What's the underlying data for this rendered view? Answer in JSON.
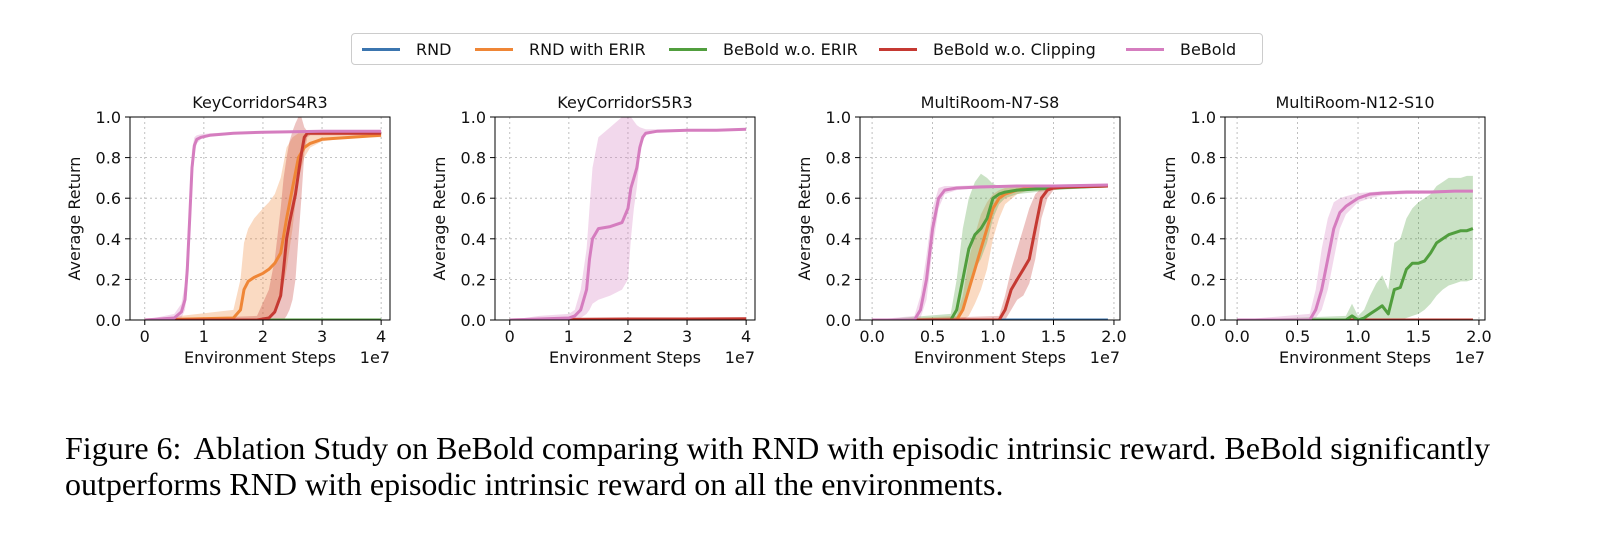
{
  "legend": {
    "items": [
      {
        "label": "RND",
        "color": "#3b75af"
      },
      {
        "label": "RND with ERIR",
        "color": "#ef8636"
      },
      {
        "label": "BeBold w.o. ERIR",
        "color": "#519e3e"
      },
      {
        "label": "BeBold w.o. Clipping",
        "color": "#c53932"
      },
      {
        "label": "BeBold",
        "color": "#d57dbf"
      }
    ]
  },
  "chart_data": [
    {
      "type": "line",
      "title": "KeyCorridorS4R3",
      "xlabel": "Environment Steps",
      "ylabel": "Average Return",
      "x_multiplier_label": "1e7",
      "xlim": [
        -0.25,
        4.15
      ],
      "ylim": [
        0,
        1.0
      ],
      "xticks": [
        0,
        1,
        2,
        3,
        4
      ],
      "xtick_labels": [
        "0",
        "1",
        "2",
        "3",
        "4"
      ],
      "yticks": [
        0,
        0.2,
        0.4,
        0.6,
        0.8,
        1.0
      ],
      "ytick_labels": [
        "0.0",
        "0.2",
        "0.4",
        "0.6",
        "0.8",
        "1.0"
      ],
      "grid": true,
      "series": [
        {
          "color": "#3b75af",
          "x": [
            0,
            4
          ],
          "y": [
            0,
            0
          ]
        },
        {
          "color": "#519e3e",
          "x": [
            0,
            4
          ],
          "y": [
            0,
            0
          ]
        },
        {
          "color": "#ef8636",
          "x": [
            0,
            1.5,
            1.62,
            1.68,
            1.75,
            1.85,
            2.0,
            2.1,
            2.2,
            2.3,
            2.4,
            2.5,
            2.6,
            2.7,
            2.8,
            3.0,
            3.5,
            4.0
          ],
          "y": [
            0,
            0.01,
            0.05,
            0.15,
            0.19,
            0.21,
            0.23,
            0.25,
            0.28,
            0.33,
            0.5,
            0.65,
            0.8,
            0.85,
            0.87,
            0.89,
            0.9,
            0.91
          ],
          "lower": [
            0,
            0,
            0,
            0,
            0,
            0,
            0,
            0,
            0.05,
            0.1,
            0.25,
            0.45,
            0.7,
            0.8,
            0.85,
            0.88,
            0.9,
            0.9
          ],
          "upper": [
            0,
            0.05,
            0.2,
            0.38,
            0.45,
            0.5,
            0.55,
            0.58,
            0.62,
            0.7,
            0.85,
            0.9,
            0.92,
            0.92,
            0.92,
            0.92,
            0.92,
            0.92
          ]
        },
        {
          "color": "#c53932",
          "x": [
            0,
            1.9,
            2.1,
            2.2,
            2.3,
            2.35,
            2.4,
            2.45,
            2.5,
            2.55,
            2.6,
            2.65,
            2.7,
            2.75,
            2.8,
            3.0,
            3.5,
            4.0
          ],
          "y": [
            0,
            0,
            0.01,
            0.04,
            0.12,
            0.25,
            0.4,
            0.48,
            0.55,
            0.62,
            0.72,
            0.82,
            0.9,
            0.92,
            0.92,
            0.92,
            0.92,
            0.92
          ],
          "lower": [
            0,
            0,
            0,
            0,
            0,
            0,
            0.02,
            0.05,
            0.1,
            0.2,
            0.4,
            0.6,
            0.82,
            0.9,
            0.91,
            0.91,
            0.91,
            0.91
          ],
          "upper": [
            0,
            0.02,
            0.15,
            0.3,
            0.55,
            0.7,
            0.8,
            0.88,
            0.93,
            0.97,
            1.0,
            1.0,
            0.95,
            0.93,
            0.93,
            0.93,
            0.93,
            0.93
          ]
        },
        {
          "color": "#d57dbf",
          "x": [
            0,
            0.5,
            0.62,
            0.68,
            0.72,
            0.76,
            0.8,
            0.84,
            0.88,
            0.95,
            1.1,
            1.5,
            2.0,
            3.0,
            4.0
          ],
          "y": [
            0,
            0.01,
            0.04,
            0.1,
            0.25,
            0.5,
            0.75,
            0.86,
            0.89,
            0.9,
            0.91,
            0.92,
            0.925,
            0.93,
            0.93
          ],
          "lower": [
            0,
            0,
            0.01,
            0.05,
            0.15,
            0.38,
            0.65,
            0.82,
            0.87,
            0.89,
            0.905,
            0.915,
            0.92,
            0.925,
            0.925
          ],
          "upper": [
            0,
            0.03,
            0.08,
            0.18,
            0.38,
            0.62,
            0.84,
            0.9,
            0.91,
            0.915,
            0.92,
            0.925,
            0.93,
            0.935,
            0.935
          ]
        }
      ]
    },
    {
      "type": "line",
      "title": "KeyCorridorS5R3",
      "xlabel": "Environment Steps",
      "ylabel": "Average Return",
      "x_multiplier_label": "1e7",
      "xlim": [
        -0.25,
        4.15
      ],
      "ylim": [
        0,
        1.0
      ],
      "xticks": [
        0,
        1,
        2,
        3,
        4
      ],
      "xtick_labels": [
        "0",
        "1",
        "2",
        "3",
        "4"
      ],
      "yticks": [
        0,
        0.2,
        0.4,
        0.6,
        0.8,
        1.0
      ],
      "ytick_labels": [
        "0.0",
        "0.2",
        "0.4",
        "0.6",
        "0.8",
        "1.0"
      ],
      "grid": true,
      "series": [
        {
          "color": "#3b75af",
          "x": [
            0,
            4
          ],
          "y": [
            0,
            0
          ]
        },
        {
          "color": "#ef8636",
          "x": [
            0,
            4
          ],
          "y": [
            0,
            0
          ]
        },
        {
          "color": "#519e3e",
          "x": [
            0,
            4
          ],
          "y": [
            0,
            0
          ]
        },
        {
          "color": "#c53932",
          "x": [
            0,
            1,
            2,
            3,
            4
          ],
          "y": [
            0,
            0.003,
            0.005,
            0.005,
            0.006
          ]
        },
        {
          "color": "#d57dbf",
          "x": [
            0,
            0.5,
            1.0,
            1.1,
            1.2,
            1.3,
            1.35,
            1.4,
            1.5,
            1.7,
            1.9,
            2.0,
            2.05,
            2.1,
            2.15,
            2.2,
            2.25,
            2.3,
            2.5,
            3.0,
            3.5,
            4.0
          ],
          "y": [
            0,
            0.005,
            0.01,
            0.02,
            0.05,
            0.15,
            0.3,
            0.4,
            0.45,
            0.46,
            0.48,
            0.55,
            0.65,
            0.7,
            0.75,
            0.85,
            0.9,
            0.92,
            0.93,
            0.935,
            0.935,
            0.94
          ],
          "lower": [
            0,
            0,
            0,
            0,
            0.01,
            0.03,
            0.05,
            0.08,
            0.1,
            0.12,
            0.15,
            0.2,
            0.4,
            0.55,
            0.65,
            0.8,
            0.88,
            0.91,
            0.925,
            0.93,
            0.93,
            0.935
          ],
          "upper": [
            0,
            0.02,
            0.03,
            0.05,
            0.15,
            0.35,
            0.55,
            0.75,
            0.9,
            0.95,
            1.0,
            1.0,
            1.0,
            0.98,
            0.96,
            0.95,
            0.945,
            0.94,
            0.94,
            0.94,
            0.94,
            0.945
          ]
        }
      ]
    },
    {
      "type": "line",
      "title": "MultiRoom-N7-S8",
      "xlabel": "Environment Steps",
      "ylabel": "Average Return",
      "x_multiplier_label": "1e7",
      "xlim": [
        -0.1,
        2.05
      ],
      "ylim": [
        0,
        1.0
      ],
      "xticks": [
        0,
        0.5,
        1.0,
        1.5,
        2.0
      ],
      "xtick_labels": [
        "0.0",
        "0.5",
        "1.0",
        "1.5",
        "2.0"
      ],
      "yticks": [
        0,
        0.2,
        0.4,
        0.6,
        0.8,
        1.0
      ],
      "ytick_labels": [
        "0.0",
        "0.2",
        "0.4",
        "0.6",
        "0.8",
        "1.0"
      ],
      "grid": true,
      "series": [
        {
          "color": "#3b75af",
          "x": [
            0,
            1.95
          ],
          "y": [
            0,
            0
          ]
        },
        {
          "color": "#ef8636",
          "x": [
            0,
            0.7,
            0.75,
            0.8,
            0.85,
            0.9,
            0.95,
            1.0,
            1.05,
            1.1,
            1.2,
            1.3,
            1.5,
            1.95
          ],
          "y": [
            0,
            0,
            0.05,
            0.15,
            0.25,
            0.35,
            0.45,
            0.55,
            0.6,
            0.62,
            0.64,
            0.65,
            0.655,
            0.66
          ],
          "lower": [
            0,
            0,
            0,
            0.02,
            0.08,
            0.15,
            0.25,
            0.4,
            0.5,
            0.57,
            0.62,
            0.64,
            0.65,
            0.655
          ],
          "upper": [
            0,
            0.02,
            0.12,
            0.3,
            0.42,
            0.52,
            0.58,
            0.62,
            0.64,
            0.65,
            0.655,
            0.66,
            0.665,
            0.665
          ]
        },
        {
          "color": "#519e3e",
          "x": [
            0,
            0.65,
            0.7,
            0.75,
            0.8,
            0.85,
            0.9,
            0.95,
            1.0,
            1.05,
            1.1,
            1.2,
            1.5,
            1.95
          ],
          "y": [
            0,
            0,
            0.05,
            0.2,
            0.35,
            0.42,
            0.45,
            0.5,
            0.6,
            0.62,
            0.63,
            0.64,
            0.65,
            0.66
          ],
          "lower": [
            0,
            0,
            0,
            0.05,
            0.15,
            0.25,
            0.3,
            0.38,
            0.5,
            0.57,
            0.6,
            0.62,
            0.64,
            0.655
          ],
          "upper": [
            0,
            0.03,
            0.2,
            0.45,
            0.6,
            0.68,
            0.72,
            0.7,
            0.67,
            0.66,
            0.66,
            0.66,
            0.665,
            0.665
          ]
        },
        {
          "color": "#c53932",
          "x": [
            0,
            1.05,
            1.1,
            1.15,
            1.2,
            1.25,
            1.3,
            1.35,
            1.4,
            1.45,
            1.5,
            1.6,
            1.95
          ],
          "y": [
            0,
            0,
            0.05,
            0.15,
            0.2,
            0.25,
            0.3,
            0.45,
            0.6,
            0.64,
            0.65,
            0.655,
            0.66
          ],
          "lower": [
            0,
            0,
            0,
            0.05,
            0.1,
            0.12,
            0.18,
            0.3,
            0.5,
            0.6,
            0.64,
            0.65,
            0.655
          ],
          "upper": [
            0,
            0.02,
            0.12,
            0.25,
            0.35,
            0.45,
            0.55,
            0.62,
            0.65,
            0.66,
            0.66,
            0.66,
            0.665
          ]
        },
        {
          "color": "#d57dbf",
          "x": [
            0,
            0.35,
            0.4,
            0.45,
            0.5,
            0.55,
            0.6,
            0.7,
            0.9,
            1.2,
            1.5,
            1.95
          ],
          "y": [
            0,
            0,
            0.05,
            0.2,
            0.45,
            0.6,
            0.64,
            0.65,
            0.655,
            0.66,
            0.66,
            0.665
          ],
          "lower": [
            0,
            0,
            0.01,
            0.1,
            0.35,
            0.55,
            0.62,
            0.64,
            0.65,
            0.655,
            0.655,
            0.66
          ],
          "upper": [
            0,
            0.02,
            0.12,
            0.32,
            0.55,
            0.65,
            0.66,
            0.66,
            0.665,
            0.665,
            0.665,
            0.67
          ]
        }
      ]
    },
    {
      "type": "line",
      "title": "MultiRoom-N12-S10",
      "xlabel": "Environment Steps",
      "ylabel": "Average Return",
      "x_multiplier_label": "1e7",
      "xlim": [
        -0.1,
        2.05
      ],
      "ylim": [
        0,
        1.0
      ],
      "xticks": [
        0,
        0.5,
        1.0,
        1.5,
        2.0
      ],
      "xtick_labels": [
        "0.0",
        "0.5",
        "1.0",
        "1.5",
        "2.0"
      ],
      "yticks": [
        0,
        0.2,
        0.4,
        0.6,
        0.8,
        1.0
      ],
      "ytick_labels": [
        "0.0",
        "0.2",
        "0.4",
        "0.6",
        "0.8",
        "1.0"
      ],
      "grid": true,
      "series": [
        {
          "color": "#3b75af",
          "x": [
            0,
            1.95
          ],
          "y": [
            0,
            0
          ]
        },
        {
          "color": "#ef8636",
          "x": [
            0,
            1.95
          ],
          "y": [
            0,
            0
          ]
        },
        {
          "color": "#c53932",
          "x": [
            0,
            1.95
          ],
          "y": [
            0,
            0
          ]
        },
        {
          "color": "#519e3e",
          "x": [
            0,
            0.9,
            0.95,
            1.0,
            1.05,
            1.1,
            1.15,
            1.2,
            1.25,
            1.3,
            1.35,
            1.4,
            1.45,
            1.5,
            1.55,
            1.6,
            1.65,
            1.7,
            1.75,
            1.8,
            1.85,
            1.9,
            1.95
          ],
          "y": [
            0,
            0,
            0.02,
            0.0,
            0.01,
            0.03,
            0.05,
            0.07,
            0.03,
            0.15,
            0.16,
            0.25,
            0.28,
            0.28,
            0.29,
            0.33,
            0.38,
            0.4,
            0.42,
            0.43,
            0.44,
            0.44,
            0.45
          ],
          "lower": [
            0,
            0,
            0,
            0,
            0,
            0,
            0,
            0,
            0,
            0,
            0,
            0.01,
            0.02,
            0.03,
            0.05,
            0.08,
            0.12,
            0.15,
            0.17,
            0.18,
            0.19,
            0.19,
            0.2
          ],
          "upper": [
            0,
            0.02,
            0.08,
            0.02,
            0.05,
            0.12,
            0.18,
            0.22,
            0.15,
            0.38,
            0.4,
            0.5,
            0.55,
            0.58,
            0.6,
            0.62,
            0.66,
            0.68,
            0.7,
            0.7,
            0.7,
            0.71,
            0.71
          ]
        },
        {
          "color": "#d57dbf",
          "x": [
            0,
            0.6,
            0.65,
            0.7,
            0.75,
            0.8,
            0.85,
            0.9,
            1.0,
            1.1,
            1.2,
            1.4,
            1.6,
            1.8,
            1.95
          ],
          "y": [
            0,
            0,
            0.05,
            0.15,
            0.3,
            0.45,
            0.53,
            0.56,
            0.6,
            0.62,
            0.625,
            0.63,
            0.63,
            0.635,
            0.635
          ],
          "lower": [
            0,
            0,
            0.01,
            0.05,
            0.15,
            0.3,
            0.45,
            0.52,
            0.58,
            0.6,
            0.615,
            0.62,
            0.625,
            0.63,
            0.63
          ],
          "upper": [
            0,
            0.03,
            0.15,
            0.35,
            0.5,
            0.58,
            0.6,
            0.61,
            0.625,
            0.63,
            0.635,
            0.64,
            0.64,
            0.64,
            0.64
          ]
        }
      ]
    }
  ],
  "caption": {
    "figure_number": "Figure 6:",
    "text": "Ablation Study on BeBold comparing with RND with episodic intrinsic reward. BeBold significantly outperforms RND with episodic intrinsic reward on all the environments."
  }
}
